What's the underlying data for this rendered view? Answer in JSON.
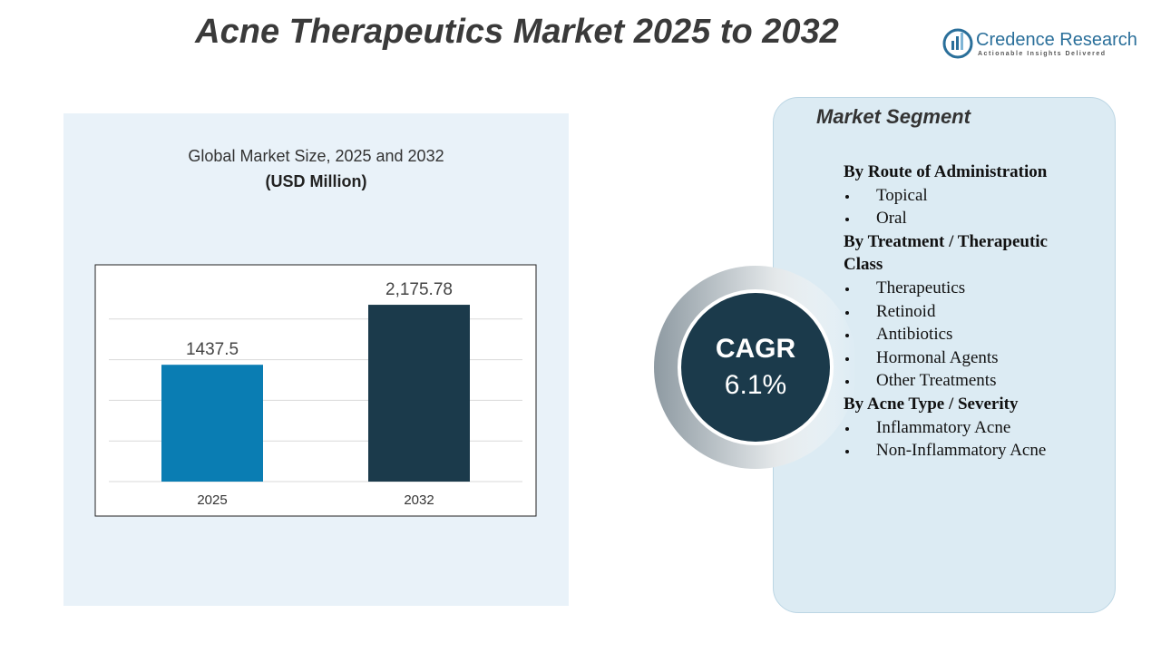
{
  "header": {
    "title": "Acne Therapeutics Market 2025 to 2032",
    "logo_name": "Credence Research",
    "logo_tagline": "Actionable Insights Delivered"
  },
  "chart_data": {
    "type": "bar",
    "title": "Global Market Size, 2025 and 2032",
    "subtitle": "(USD Million)",
    "categories": [
      "2025",
      "2032"
    ],
    "values": [
      1437.5,
      2175.78
    ],
    "value_labels": [
      "1437.5",
      "2,175.78"
    ],
    "colors": [
      "#0a7db3",
      "#1b3a4b"
    ],
    "ylim": [
      0,
      2500
    ],
    "yticks": [
      0,
      500,
      1000,
      1500,
      2000
    ],
    "grid": true
  },
  "cagr": {
    "label": "CAGR",
    "value": "6.1%"
  },
  "segments": {
    "title": "Market Segment",
    "groups": [
      {
        "heading": "By Route of Administration",
        "items": [
          "Topical",
          "Oral"
        ]
      },
      {
        "heading": "By Treatment / Therapeutic Class",
        "items": [
          "Therapeutics",
          "Retinoid",
          "Antibiotics",
          "Hormonal Agents",
          "Other Treatments"
        ]
      },
      {
        "heading": "By Acne Type / Severity",
        "items": [
          "Inflammatory Acne",
          "Non-Inflammatory Acne"
        ]
      }
    ]
  }
}
